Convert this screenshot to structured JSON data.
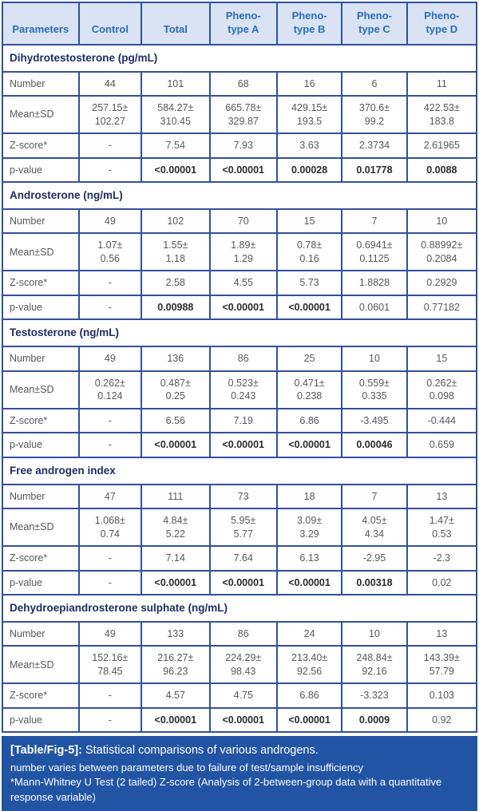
{
  "colors": {
    "header_bg": "#d9e3f3",
    "header_text": "#2e6cb5",
    "border": "#31509e",
    "section_text": "#1e2d61",
    "data_text": "#57585b",
    "bold_text": "#2b2b2e",
    "footer_bg": "#2254a4",
    "footer_text": "#ffffff"
  },
  "table": {
    "header": [
      "Parameters",
      "Control",
      "Total",
      "Pheno-\ntype A",
      "Pheno-\ntype B",
      "Pheno-\ntype C",
      "Pheno-\ntype D"
    ],
    "sections": [
      {
        "title": "Dihydrotestosterone (pg/mL)",
        "rows": [
          {
            "label": "Number",
            "values": [
              "44",
              "101",
              "68",
              "16",
              "6",
              "11"
            ]
          },
          {
            "label": "Mean±SD",
            "values": [
              "257.15±\n102.27",
              "584.27±\n310.45",
              "665.78±\n329.87",
              "429.15±\n193.5",
              "370.6±\n99.2",
              "422.53±\n183.8"
            ]
          },
          {
            "label": "Z-score*",
            "values": [
              "-",
              "7.54",
              "7.93",
              "3.63",
              "2.3734",
              "2.61965"
            ]
          },
          {
            "label": "p-value",
            "values": [
              "-",
              "<0.00001",
              "<0.00001",
              "0.00028",
              "0.01778",
              "0.0088"
            ],
            "bold": [
              false,
              true,
              true,
              true,
              true,
              true
            ]
          }
        ]
      },
      {
        "title": "Androsterone (ng/mL)",
        "rows": [
          {
            "label": "Number",
            "values": [
              "49",
              "102",
              "70",
              "15",
              "7",
              "10"
            ]
          },
          {
            "label": "Mean±SD",
            "values": [
              "1.07±\n0.56",
              "1.55±\n1.18",
              "1.89±\n1.29",
              "0.78±\n0.16",
              "0.6941±\n0.1125",
              "0.88992±\n0.2084"
            ]
          },
          {
            "label": "Z-score*",
            "values": [
              "-",
              "2.58",
              "4.55",
              "5.73",
              "1.8828",
              "0.2929"
            ]
          },
          {
            "label": "p-value",
            "values": [
              "-",
              "0.00988",
              "<0.00001",
              "<0.00001",
              "0.0601",
              "0.77182"
            ],
            "bold": [
              false,
              true,
              true,
              true,
              false,
              false
            ]
          }
        ]
      },
      {
        "title": "Testosterone (ng/mL)",
        "rows": [
          {
            "label": "Number",
            "values": [
              "49",
              "136",
              "86",
              "25",
              "10",
              "15"
            ]
          },
          {
            "label": "Mean±SD",
            "values": [
              "0.262±\n0.124",
              "0.487±\n0.25",
              "0.523±\n0.243",
              "0.471±\n0.238",
              "0.559±\n0.335",
              "0.262±\n0.098"
            ]
          },
          {
            "label": "Z-score*",
            "values": [
              "-",
              "6.56",
              "7.19",
              "6.86",
              "-3.495",
              "-0.444"
            ]
          },
          {
            "label": "p-value",
            "values": [
              "-",
              "<0.00001",
              "<0.00001",
              "<0.00001",
              "0.00046",
              "0.659"
            ],
            "bold": [
              false,
              true,
              true,
              true,
              true,
              false
            ]
          }
        ]
      },
      {
        "title": "Free androgen index",
        "rows": [
          {
            "label": "Number",
            "values": [
              "47",
              "111",
              "73",
              "18",
              "7",
              "13"
            ]
          },
          {
            "label": "Mean±SD",
            "values": [
              "1.068±\n0.74",
              "4.84±\n5.22",
              "5.95±\n5.77",
              "3.09±\n3.29",
              "4.05±\n4.34",
              "1.47±\n0.53"
            ]
          },
          {
            "label": "Z-score*",
            "values": [
              "-",
              "7.14",
              "7.64",
              "6.13",
              "-2.95",
              "-2.3"
            ]
          },
          {
            "label": "p-value",
            "values": [
              "-",
              "<0.00001",
              "<0.00001",
              "<0.00001",
              "0.00318",
              "0.02"
            ],
            "bold": [
              false,
              true,
              true,
              true,
              true,
              false
            ]
          }
        ]
      },
      {
        "title": "Dehydroepiandrosterone sulphate (ng/mL)",
        "rows": [
          {
            "label": "Number",
            "values": [
              "49",
              "133",
              "86",
              "24",
              "10",
              "13"
            ]
          },
          {
            "label": "Mean±SD",
            "values": [
              "152.16±\n78.45",
              "216.27±\n96.23",
              "224.29±\n98.43",
              "213.40±\n92.56",
              "248.84±\n92.16",
              "143.39±\n57.79"
            ]
          },
          {
            "label": "Z-score*",
            "values": [
              "-",
              "4.57",
              "4.75",
              "6.86",
              "-3.323",
              "0.103"
            ]
          },
          {
            "label": "p-value",
            "values": [
              "-",
              "<0.00001",
              "<0.00001",
              "<0.00001",
              "0.0009",
              "0.92"
            ],
            "bold": [
              false,
              true,
              true,
              true,
              true,
              false
            ]
          }
        ]
      }
    ]
  },
  "footer": {
    "label": "[Table/Fig-5]:",
    "caption": "Statistical comparisons of various androgens.",
    "note1": "number varies between parameters due to failure of test/sample insufficiency",
    "note2": "*Mann-Whitney U Test (2 tailed) Z-score (Analysis of 2-between-group data with a quantitative response variable)"
  }
}
